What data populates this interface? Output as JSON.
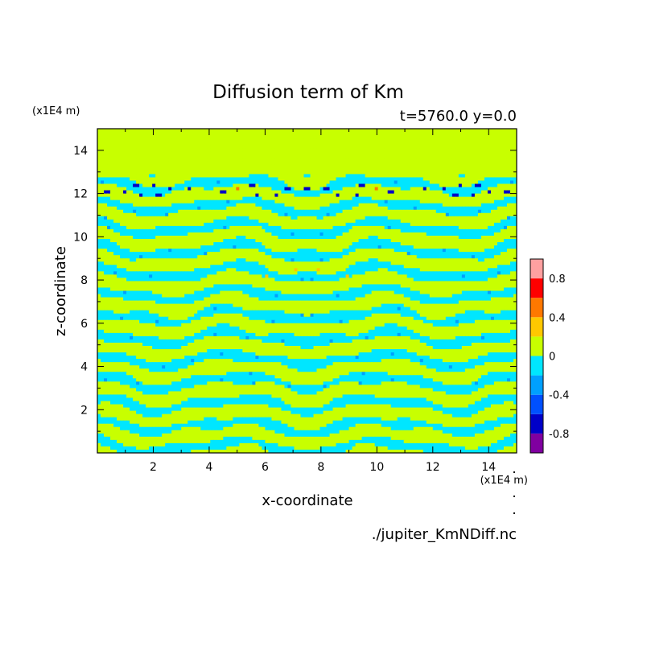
{
  "chart_data": {
    "type": "heatmap",
    "title": "Diffusion term of Km",
    "subtitle": "t=5760.0 y=0.0",
    "xlabel": "x-coordinate",
    "ylabel": "z-coordinate",
    "x_unit_label": "(x1E4 m)",
    "y_unit_label": "(x1E4 m)",
    "source_label": "./jupiter_KmNDiff.nc",
    "xlim": [
      0,
      15
    ],
    "ylim": [
      0,
      15
    ],
    "x_ticks": [
      2,
      4,
      6,
      8,
      10,
      12,
      14
    ],
    "y_ticks": [
      2,
      4,
      6,
      8,
      10,
      12,
      14
    ],
    "colorbar": {
      "levels": [
        -1.0,
        -0.8,
        -0.6,
        -0.4,
        -0.2,
        0.0,
        0.2,
        0.4,
        0.6,
        0.8,
        1.0
      ],
      "colors": [
        "#8000a0",
        "#0000c8",
        "#0050ff",
        "#00a0ff",
        "#00e6ff",
        "#c8ff00",
        "#ffc800",
        "#ff7800",
        "#ff0000",
        "#ffa0a0"
      ],
      "tick_values": [
        -0.8,
        -0.4,
        0,
        0.4,
        0.8
      ],
      "tick_labels": [
        "-0.8",
        "-0.4",
        "0",
        "0.4",
        "0.8"
      ]
    }
  }
}
